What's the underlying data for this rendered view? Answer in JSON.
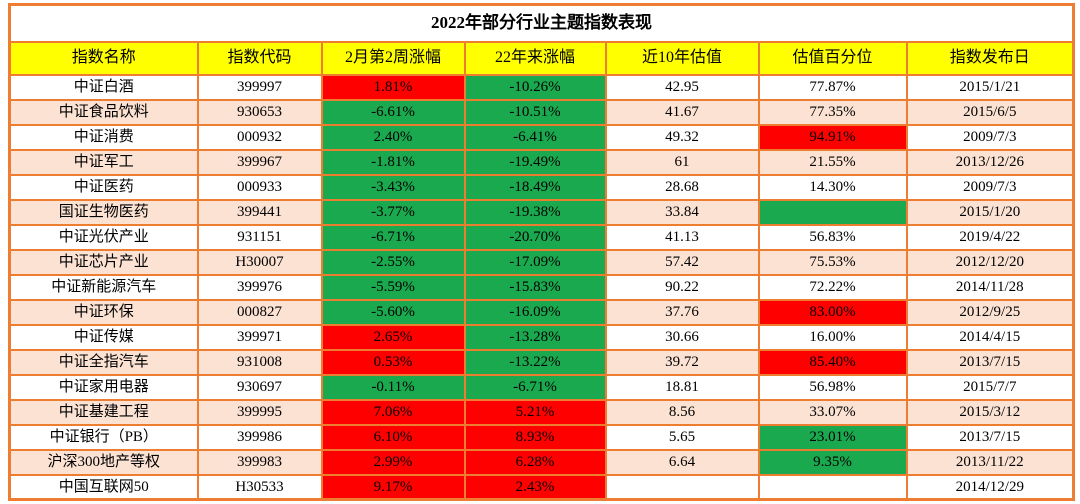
{
  "colors": {
    "border_orange": "#ED7D31",
    "header_yellow": "#FFFF00",
    "row_alt_pink": "#FBE2D3",
    "row_white": "#FFFFFF",
    "red": "#FF0000",
    "green": "#1BA94F"
  },
  "table": {
    "title": "2022年部分行业主题指数表现",
    "headers": [
      "指数名称",
      "指数代码",
      "2月第2周涨幅",
      "22年来涨幅",
      "近10年估值",
      "估值百分位",
      "指数发布日"
    ],
    "rows": [
      {
        "name": "中证白酒",
        "code": "399997",
        "week": "1.81%",
        "week_bg": "red",
        "ytd": "-10.26%",
        "ytd_bg": "green",
        "val": "42.95",
        "pct": "77.87%",
        "pct_bg": "",
        "date": "2015/1/21"
      },
      {
        "name": "中证食品饮料",
        "code": "930653",
        "week": "-6.61%",
        "week_bg": "green",
        "ytd": "-10.51%",
        "ytd_bg": "green",
        "val": "41.67",
        "pct": "77.35%",
        "pct_bg": "",
        "date": "2015/6/5"
      },
      {
        "name": "中证消费",
        "code": "000932",
        "week": "2.40%",
        "week_bg": "green",
        "ytd": "-6.41%",
        "ytd_bg": "green",
        "val": "49.32",
        "pct": "94.91%",
        "pct_bg": "red",
        "date": "2009/7/3"
      },
      {
        "name": "中证军工",
        "code": "399967",
        "week": "-1.81%",
        "week_bg": "green",
        "ytd": "-19.49%",
        "ytd_bg": "green",
        "val": "61",
        "pct": "21.55%",
        "pct_bg": "",
        "date": "2013/12/26"
      },
      {
        "name": "中证医药",
        "code": "000933",
        "week": "-3.43%",
        "week_bg": "green",
        "ytd": "-18.49%",
        "ytd_bg": "green",
        "val": "28.68",
        "pct": "14.30%",
        "pct_bg": "",
        "date": "2009/7/3"
      },
      {
        "name": "国证生物医药",
        "code": "399441",
        "week": "-3.77%",
        "week_bg": "green",
        "ytd": "-19.38%",
        "ytd_bg": "green",
        "val": "33.84",
        "pct": "",
        "pct_bg": "green",
        "date": "2015/1/20"
      },
      {
        "name": "中证光伏产业",
        "code": "931151",
        "week": "-6.71%",
        "week_bg": "green",
        "ytd": "-20.70%",
        "ytd_bg": "green",
        "val": "41.13",
        "pct": "56.83%",
        "pct_bg": "",
        "date": "2019/4/22"
      },
      {
        "name": "中证芯片产业",
        "code": "H30007",
        "week": "-2.55%",
        "week_bg": "green",
        "ytd": "-17.09%",
        "ytd_bg": "green",
        "val": "57.42",
        "pct": "75.53%",
        "pct_bg": "",
        "date": "2012/12/20"
      },
      {
        "name": "中证新能源汽车",
        "code": "399976",
        "week": "-5.59%",
        "week_bg": "green",
        "ytd": "-15.83%",
        "ytd_bg": "green",
        "val": "90.22",
        "pct": "72.22%",
        "pct_bg": "",
        "date": "2014/11/28"
      },
      {
        "name": "中证环保",
        "code": "000827",
        "week": "-5.60%",
        "week_bg": "green",
        "ytd": "-16.09%",
        "ytd_bg": "green",
        "val": "37.76",
        "pct": "83.00%",
        "pct_bg": "red",
        "date": "2012/9/25"
      },
      {
        "name": "中证传媒",
        "code": "399971",
        "week": "2.65%",
        "week_bg": "red",
        "ytd": "-13.28%",
        "ytd_bg": "green",
        "val": "30.66",
        "pct": "16.00%",
        "pct_bg": "",
        "date": "2014/4/15"
      },
      {
        "name": "中证全指汽车",
        "code": "931008",
        "week": "0.53%",
        "week_bg": "red",
        "ytd": "-13.22%",
        "ytd_bg": "green",
        "val": "39.72",
        "pct": "85.40%",
        "pct_bg": "red",
        "date": "2013/7/15"
      },
      {
        "name": "中证家用电器",
        "code": "930697",
        "week": "-0.11%",
        "week_bg": "green",
        "ytd": "-6.71%",
        "ytd_bg": "green",
        "val": "18.81",
        "pct": "56.98%",
        "pct_bg": "",
        "date": "2015/7/7"
      },
      {
        "name": "中证基建工程",
        "code": "399995",
        "week": "7.06%",
        "week_bg": "red",
        "ytd": "5.21%",
        "ytd_bg": "red",
        "val": "8.56",
        "pct": "33.07%",
        "pct_bg": "",
        "date": "2015/3/12"
      },
      {
        "name": "中证银行（PB）",
        "code": "399986",
        "week": "6.10%",
        "week_bg": "red",
        "ytd": "8.93%",
        "ytd_bg": "red",
        "val": "5.65",
        "pct": "23.01%",
        "pct_bg": "green",
        "date": "2013/7/15"
      },
      {
        "name": "沪深300地产等权",
        "code": "399983",
        "week": "2.99%",
        "week_bg": "red",
        "ytd": "6.28%",
        "ytd_bg": "red",
        "val": "6.64",
        "pct": "9.35%",
        "pct_bg": "green",
        "date": "2013/11/22"
      },
      {
        "name": "中国互联网50",
        "code": "H30533",
        "week": "9.17%",
        "week_bg": "red",
        "ytd": "2.43%",
        "ytd_bg": "red",
        "val": "",
        "pct": "",
        "pct_bg": "",
        "date": "2014/12/29"
      }
    ]
  },
  "chart_data": {
    "type": "table",
    "title": "2022年部分行业主题指数表现",
    "columns": [
      "指数名称",
      "指数代码",
      "2月第2周涨幅",
      "22年来涨幅",
      "近10年估值",
      "估值百分位",
      "指数发布日"
    ],
    "rows": [
      [
        "中证白酒",
        "399997",
        "1.81%",
        "-10.26%",
        "42.95",
        "77.87%",
        "2015/1/21"
      ],
      [
        "中证食品饮料",
        "930653",
        "-6.61%",
        "-10.51%",
        "41.67",
        "77.35%",
        "2015/6/5"
      ],
      [
        "中证消费",
        "000932",
        "2.40%",
        "-6.41%",
        "49.32",
        "94.91%",
        "2009/7/3"
      ],
      [
        "中证军工",
        "399967",
        "-1.81%",
        "-19.49%",
        "61",
        "21.55%",
        "2013/12/26"
      ],
      [
        "中证医药",
        "000933",
        "-3.43%",
        "-18.49%",
        "28.68",
        "14.30%",
        "2009/7/3"
      ],
      [
        "国证生物医药",
        "399441",
        "-3.77%",
        "-19.38%",
        "33.84",
        "",
        "2015/1/20"
      ],
      [
        "中证光伏产业",
        "931151",
        "-6.71%",
        "-20.70%",
        "41.13",
        "56.83%",
        "2019/4/22"
      ],
      [
        "中证芯片产业",
        "H30007",
        "-2.55%",
        "-17.09%",
        "57.42",
        "75.53%",
        "2012/12/20"
      ],
      [
        "中证新能源汽车",
        "399976",
        "-5.59%",
        "-15.83%",
        "90.22",
        "72.22%",
        "2014/11/28"
      ],
      [
        "中证环保",
        "000827",
        "-5.60%",
        "-16.09%",
        "37.76",
        "83.00%",
        "2012/9/25"
      ],
      [
        "中证传媒",
        "399971",
        "2.65%",
        "-13.28%",
        "30.66",
        "16.00%",
        "2014/4/15"
      ],
      [
        "中证全指汽车",
        "931008",
        "0.53%",
        "-13.22%",
        "39.72",
        "85.40%",
        "2013/7/15"
      ],
      [
        "中证家用电器",
        "930697",
        "-0.11%",
        "-6.71%",
        "18.81",
        "56.98%",
        "2015/7/7"
      ],
      [
        "中证基建工程",
        "399995",
        "7.06%",
        "5.21%",
        "8.56",
        "33.07%",
        "2015/3/12"
      ],
      [
        "中证银行（PB）",
        "399986",
        "6.10%",
        "8.93%",
        "5.65",
        "23.01%",
        "2013/7/15"
      ],
      [
        "沪深300地产等权",
        "399983",
        "2.99%",
        "6.28%",
        "6.64",
        "9.35%",
        "2013/11/22"
      ],
      [
        "中国互联网50",
        "H30533",
        "9.17%",
        "2.43%",
        "",
        "",
        "2014/12/29"
      ]
    ]
  }
}
